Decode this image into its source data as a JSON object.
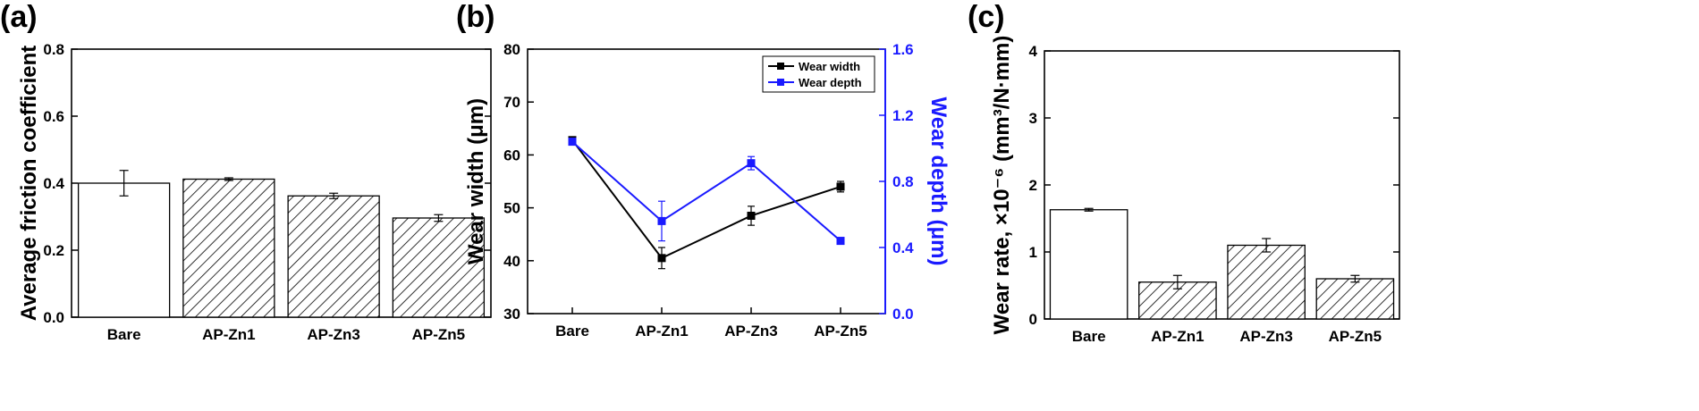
{
  "panel_labels": [
    "(a)",
    "(b)",
    "(c)"
  ],
  "colors": {
    "axis": "#000000",
    "series_width": "#000000",
    "series_depth": "#1a1aff"
  },
  "chart_data": [
    {
      "type": "bar",
      "panel": "(a)",
      "categories": [
        "Bare",
        "AP-Zn1",
        "AP-Zn3",
        "AP-Zn5"
      ],
      "values": [
        0.4,
        0.412,
        0.362,
        0.296
      ],
      "errors": [
        0.038,
        0.004,
        0.008,
        0.01
      ],
      "hatched": [
        false,
        true,
        true,
        true
      ],
      "ylabel": "Average friction coefficient",
      "ylim": [
        0.0,
        0.8
      ],
      "yticks": [
        "0.0",
        "0.2",
        "0.4",
        "0.6",
        "0.8"
      ]
    },
    {
      "type": "line",
      "panel": "(b)",
      "categories": [
        "Bare",
        "AP-Zn1",
        "AP-Zn3",
        "AP-Zn5"
      ],
      "ylabel": "Wear width (μm)",
      "ylim": [
        30,
        80
      ],
      "yticks": [
        "30",
        "40",
        "50",
        "60",
        "70",
        "80"
      ],
      "y2label": "Wear depth (μm)",
      "y2lim": [
        0.0,
        1.6
      ],
      "y2ticks": [
        "0.0",
        "0.4",
        "0.8",
        "1.2",
        "1.6"
      ],
      "legend_position": "top-right",
      "series": [
        {
          "name": "Wear width",
          "axis": "left",
          "values": [
            62.8,
            40.5,
            48.5,
            54.0
          ],
          "errors": [
            0.5,
            2.0,
            1.8,
            1.0
          ]
        },
        {
          "name": "Wear depth",
          "axis": "right",
          "values": [
            1.04,
            0.56,
            0.91,
            0.44
          ],
          "errors": [
            0.02,
            0.12,
            0.04,
            0.02
          ]
        }
      ]
    },
    {
      "type": "bar",
      "panel": "(c)",
      "categories": [
        "Bare",
        "AP-Zn1",
        "AP-Zn3",
        "AP-Zn5"
      ],
      "values": [
        1.63,
        0.55,
        1.1,
        0.6
      ],
      "errors": [
        0.02,
        0.1,
        0.1,
        0.05
      ],
      "hatched": [
        false,
        true,
        true,
        true
      ],
      "ylabel": "Wear rate, ×10⁻⁶ (mm³/N·mm)",
      "ylim": [
        0,
        4
      ],
      "yticks": [
        "0",
        "1",
        "2",
        "3",
        "4"
      ]
    }
  ]
}
